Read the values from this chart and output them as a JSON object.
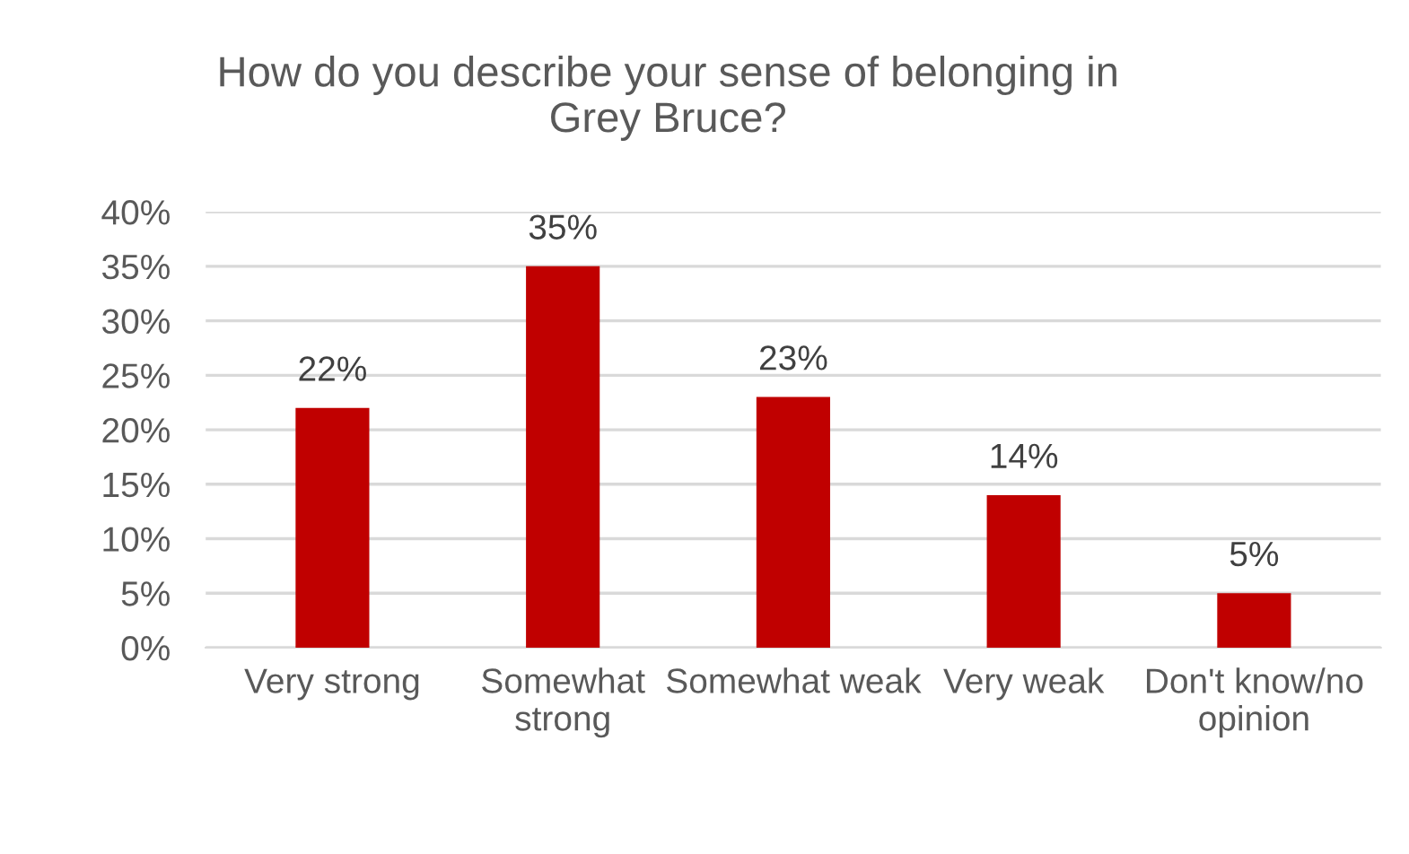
{
  "chart_data": {
    "type": "bar",
    "title": "How do you describe your sense of belonging in Grey Bruce?",
    "categories": [
      "Very strong",
      "Somewhat strong",
      "Somewhat weak",
      "Very weak",
      "Don't know/no opinion"
    ],
    "values": [
      22,
      35,
      23,
      14,
      5
    ],
    "value_labels": [
      "22%",
      "35%",
      "23%",
      "14%",
      "5%"
    ],
    "color": "#c00000",
    "ylim": [
      0,
      40
    ],
    "yticks": [
      {
        "value": 0,
        "label": "0%"
      },
      {
        "value": 5,
        "label": "5%"
      },
      {
        "value": 10,
        "label": "10%"
      },
      {
        "value": 15,
        "label": "15%"
      },
      {
        "value": 20,
        "label": "20%"
      },
      {
        "value": 25,
        "label": "25%"
      },
      {
        "value": 30,
        "label": "30%"
      },
      {
        "value": 35,
        "label": "35%"
      },
      {
        "value": 40,
        "label": "40%"
      }
    ],
    "grid": "y",
    "legend": false
  }
}
